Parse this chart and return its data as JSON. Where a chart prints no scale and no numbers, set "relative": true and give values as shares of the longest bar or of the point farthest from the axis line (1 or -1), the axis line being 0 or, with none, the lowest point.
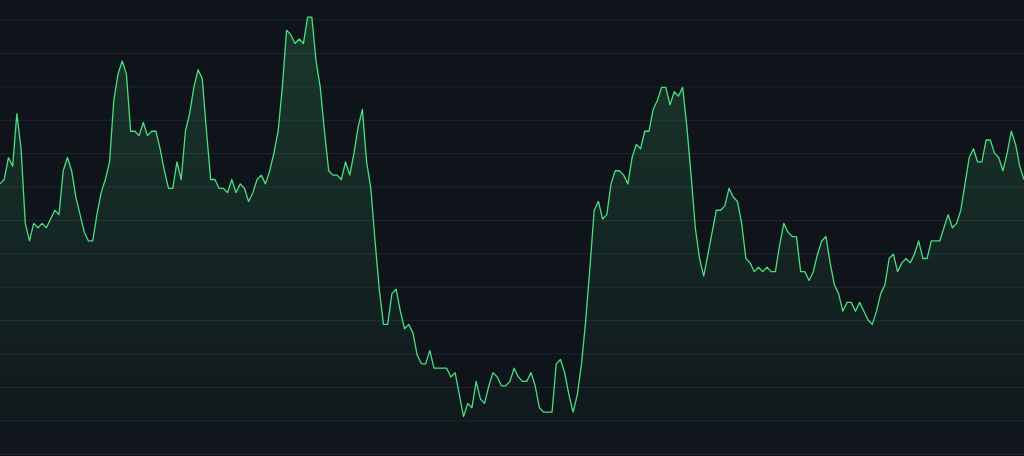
{
  "chart_data": {
    "type": "area",
    "relative": true,
    "grid": "y",
    "categories": [
      null,
      null,
      null,
      null,
      null,
      null,
      null,
      null,
      null,
      null,
      null,
      null,
      null,
      null,
      null,
      null,
      null,
      null,
      null,
      null,
      null,
      null,
      null,
      null,
      null,
      null,
      null,
      null,
      null,
      null,
      null,
      null,
      null,
      null,
      null,
      null,
      null,
      null,
      null,
      null,
      null,
      null,
      null,
      null,
      null,
      null,
      null,
      null,
      null,
      null,
      null,
      null,
      null,
      null,
      null,
      null,
      null,
      null,
      null,
      null,
      null,
      null,
      null,
      null,
      null,
      null,
      null,
      null,
      null,
      null,
      null,
      null,
      null,
      null,
      null,
      null,
      null,
      null,
      null,
      null,
      null,
      null,
      null,
      null,
      null,
      null,
      null,
      null,
      null,
      null,
      null,
      null,
      null,
      null,
      null,
      null,
      null,
      null,
      null,
      null,
      null,
      null,
      null,
      null,
      null,
      null,
      null,
      null,
      null,
      null,
      null,
      null,
      null,
      null,
      null,
      null,
      null,
      null,
      null,
      null,
      null,
      null,
      null,
      null,
      null,
      null,
      null,
      null,
      null,
      null,
      null,
      null,
      null,
      null,
      null,
      null,
      null,
      null,
      null,
      null,
      null,
      null,
      null,
      null,
      null,
      null,
      null,
      null,
      null,
      null,
      null,
      null,
      null,
      null,
      null,
      null,
      null,
      null,
      null,
      null,
      null,
      null,
      null,
      null,
      null,
      null,
      null,
      null,
      null,
      null,
      null,
      null,
      null,
      null,
      null,
      null,
      null,
      null,
      null,
      null,
      null,
      null,
      null,
      null,
      null,
      null,
      null,
      null,
      null,
      null,
      null,
      null,
      null,
      null,
      null,
      null,
      null,
      null,
      null,
      null,
      null,
      null,
      null,
      null,
      null,
      null,
      null,
      null,
      null,
      null,
      null,
      null,
      null,
      null,
      null,
      null,
      null,
      null,
      null,
      null,
      null,
      null,
      null,
      null,
      null,
      null,
      null,
      null,
      null,
      null,
      null,
      null,
      null,
      null,
      null,
      null,
      null,
      null,
      null,
      null,
      null,
      null,
      null,
      null
    ],
    "series": [
      {
        "color": "#4ade80",
        "values": [
          0.62,
          0.63,
          0.68,
          0.66,
          0.78,
          0.7,
          0.53,
          0.49,
          0.53,
          0.52,
          0.53,
          0.52,
          0.54,
          0.56,
          0.55,
          0.65,
          0.68,
          0.65,
          0.59,
          0.55,
          0.51,
          0.49,
          0.49,
          0.55,
          0.6,
          0.63,
          0.67,
          0.81,
          0.87,
          0.9,
          0.87,
          0.74,
          0.74,
          0.73,
          0.76,
          0.73,
          0.74,
          0.74,
          0.7,
          0.65,
          0.61,
          0.61,
          0.67,
          0.63,
          0.74,
          0.78,
          0.84,
          0.88,
          0.86,
          0.74,
          0.63,
          0.63,
          0.61,
          0.61,
          0.6,
          0.63,
          0.6,
          0.62,
          0.61,
          0.58,
          0.6,
          0.63,
          0.64,
          0.62,
          0.65,
          0.69,
          0.74,
          0.84,
          0.97,
          0.96,
          0.94,
          0.95,
          0.94,
          1.0,
          1.0,
          0.9,
          0.84,
          0.74,
          0.65,
          0.64,
          0.64,
          0.63,
          0.67,
          0.64,
          0.69,
          0.75,
          0.79,
          0.67,
          0.61,
          0.49,
          0.38,
          0.3,
          0.3,
          0.37,
          0.38,
          0.33,
          0.29,
          0.3,
          0.28,
          0.23,
          0.21,
          0.21,
          0.24,
          0.2,
          0.2,
          0.2,
          0.2,
          0.18,
          0.19,
          0.14,
          0.09,
          0.12,
          0.11,
          0.17,
          0.13,
          0.12,
          0.16,
          0.19,
          0.18,
          0.16,
          0.16,
          0.17,
          0.2,
          0.18,
          0.17,
          0.17,
          0.19,
          0.16,
          0.11,
          0.1,
          0.1,
          0.1,
          0.21,
          0.22,
          0.19,
          0.14,
          0.1,
          0.14,
          0.21,
          0.31,
          0.43,
          0.56,
          0.58,
          0.54,
          0.55,
          0.62,
          0.65,
          0.65,
          0.64,
          0.62,
          0.68,
          0.71,
          0.7,
          0.74,
          0.74,
          0.79,
          0.81,
          0.84,
          0.84,
          0.8,
          0.83,
          0.82,
          0.84,
          0.75,
          0.64,
          0.52,
          0.45,
          0.41,
          0.46,
          0.51,
          0.56,
          0.56,
          0.57,
          0.61,
          0.59,
          0.58,
          0.53,
          0.45,
          0.44,
          0.42,
          0.43,
          0.42,
          0.43,
          0.42,
          0.42,
          0.48,
          0.53,
          0.51,
          0.5,
          0.5,
          0.42,
          0.42,
          0.4,
          0.42,
          0.46,
          0.49,
          0.5,
          0.44,
          0.39,
          0.37,
          0.33,
          0.35,
          0.35,
          0.33,
          0.35,
          0.33,
          0.31,
          0.3,
          0.33,
          0.37,
          0.39,
          0.45,
          0.46,
          0.42,
          0.44,
          0.45,
          0.44,
          0.46,
          0.49,
          0.45,
          0.45,
          0.49,
          0.49,
          0.49,
          0.52,
          0.55,
          0.52,
          0.53,
          0.56,
          0.62,
          0.68,
          0.7,
          0.67,
          0.67,
          0.72,
          0.72,
          0.69,
          0.68,
          0.65,
          0.69,
          0.74,
          0.71,
          0.66,
          0.63
        ]
      }
    ]
  }
}
